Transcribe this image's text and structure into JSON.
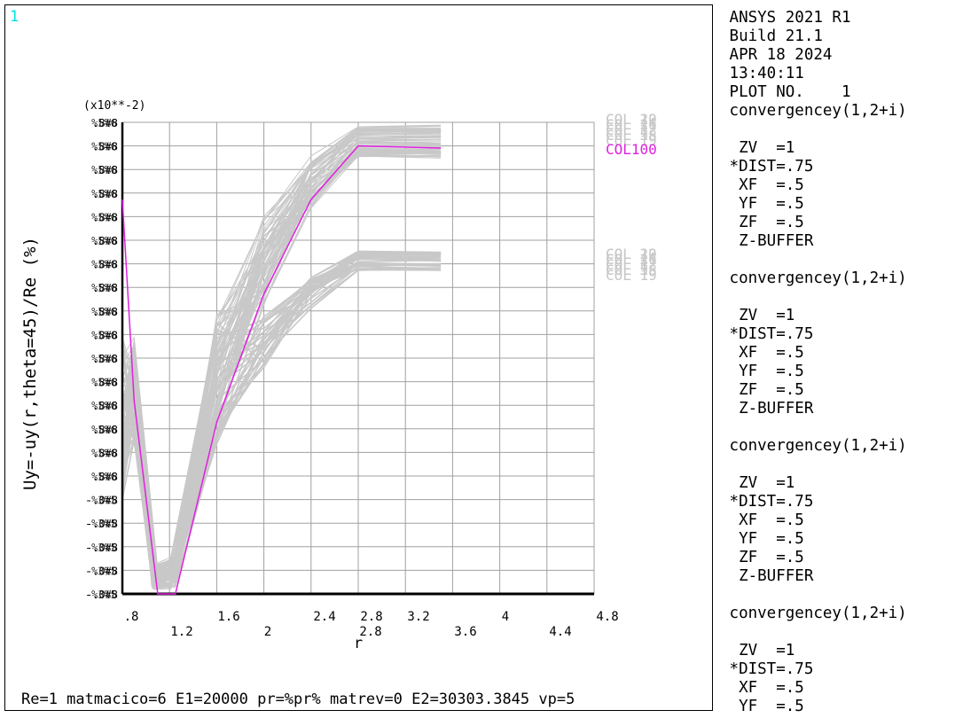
{
  "window_number": "1",
  "side_panel": [
    " ANSYS 2021 R1",
    " Build 21.1",
    " APR 18 2024",
    " 13:40:11",
    " PLOT NO.    1",
    " convergencey(1,2+i)",
    "",
    "  ZV  =1",
    " *DIST=.75",
    "  XF  =.5",
    "  YF  =.5",
    "  ZF  =.5",
    "  Z-BUFFER",
    "",
    " convergencey(1,2+i)",
    "",
    "  ZV  =1",
    " *DIST=.75",
    "  XF  =.5",
    "  YF  =.5",
    "  ZF  =.5",
    "  Z-BUFFER",
    "",
    " convergencey(1,2+i)",
    "",
    "  ZV  =1",
    " *DIST=.75",
    "  XF  =.5",
    "  YF  =.5",
    "  ZF  =.5",
    "  Z-BUFFER",
    "",
    " convergencey(1,2+i)",
    "",
    "  ZV  =1",
    " *DIST=.75",
    "  XF  =.5",
    "  YF  =.5"
  ],
  "footer": "Re=1 matmacico=6 E1=20000 pr=%pr% matrev=0 E2=30303.3845 vp=5",
  "colors": {
    "highlight": "#e020e0",
    "gray_curves": "#c8c8c8",
    "grid": "#a0a0a0",
    "axis": "#000000",
    "window_number": "#00e0e0"
  },
  "chart_data": {
    "type": "line",
    "xlabel": "r",
    "ylabel": "Uy=-uy(r,theta=45)/Re (%)",
    "y_multiplier_label": "(x10**-2)",
    "xlim": [
      0.8,
      4.8
    ],
    "x_ticks_upper": [
      ".8",
      "1.6",
      "2.4",
      "2.8",
      "3.2",
      "4",
      "4.8"
    ],
    "x_ticks_lower": [
      "1.2",
      "2",
      "2.8",
      "3.6",
      "4.4"
    ],
    "grid": true,
    "highlight_series": {
      "name": "COL100",
      "x": [
        0.8,
        0.9,
        1.1,
        1.25,
        1.6,
        2.0,
        2.4,
        2.8,
        3.5
      ],
      "y": [
        0.82,
        0.35,
        -0.1,
        -0.1,
        0.3,
        0.6,
        0.82,
        0.945,
        0.94
      ]
    },
    "legend_labels": [
      "COL 10",
      "COL 11",
      "COL 12",
      "COL 18",
      "COL 19",
      "COL 22",
      "COL 26",
      "COL 3",
      "COL 5"
    ]
  }
}
